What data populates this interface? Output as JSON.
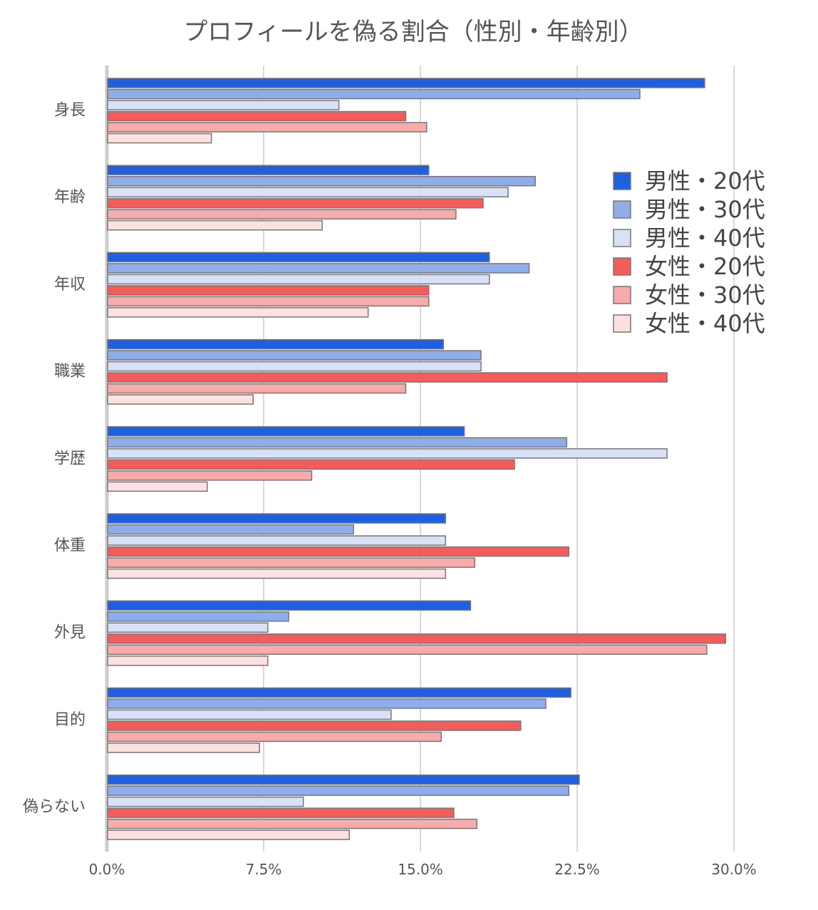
{
  "chart_data": {
    "type": "bar",
    "orientation": "horizontal",
    "title": "プロフィールを偽る割合（性別・年齢別）",
    "xlabel": "",
    "ylabel": "",
    "xlim": [
      0,
      30
    ],
    "x_ticks": [
      0,
      7.5,
      15,
      22.5,
      30
    ],
    "x_tick_labels": [
      "0.0%",
      "7.5%",
      "15.0%",
      "22.5%",
      "30.0%"
    ],
    "grid": true,
    "legend_position": "top-right",
    "categories": [
      "身長",
      "年齢",
      "年収",
      "職業",
      "学歴",
      "体重",
      "外見",
      "目的",
      "偽らない"
    ],
    "series": [
      {
        "name": "男性・20代",
        "color": "#1f5fe0",
        "values": [
          28.6,
          15.4,
          18.3,
          16.1,
          17.1,
          16.2,
          17.4,
          22.2,
          22.6
        ]
      },
      {
        "name": "男性・30代",
        "color": "#8fadea",
        "values": [
          25.5,
          20.5,
          20.2,
          17.9,
          22.0,
          11.8,
          8.7,
          21.0,
          22.1
        ]
      },
      {
        "name": "男性・40代",
        "color": "#d8e1f8",
        "values": [
          11.1,
          19.2,
          18.3,
          17.9,
          26.8,
          16.2,
          7.7,
          13.6,
          9.4
        ]
      },
      {
        "name": "女性・20代",
        "color": "#f45c5c",
        "values": [
          14.3,
          18.0,
          15.4,
          26.8,
          19.5,
          22.1,
          29.6,
          19.8,
          16.6
        ]
      },
      {
        "name": "女性・30代",
        "color": "#f8abab",
        "values": [
          15.3,
          16.7,
          15.4,
          14.3,
          9.8,
          17.6,
          28.7,
          16.0,
          17.7
        ]
      },
      {
        "name": "女性・40代",
        "color": "#fde0e0",
        "values": [
          5.0,
          10.3,
          12.5,
          7.0,
          4.8,
          16.2,
          7.7,
          7.3,
          11.6
        ]
      }
    ]
  }
}
